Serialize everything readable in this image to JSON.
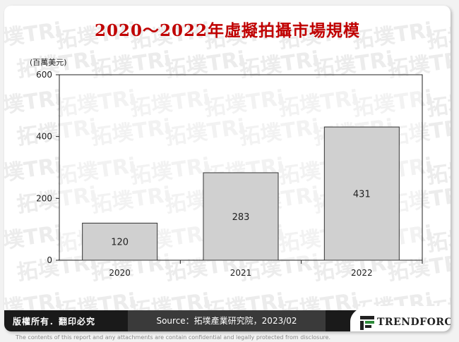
{
  "title": "2020～2022年虛擬拍攝市場規模",
  "footer": {
    "rights": "版權所有．翻印必究",
    "source": "Source：拓墣產業研究院，2023/02",
    "logo_text": "TRENDFORCE"
  },
  "disclaimer": "The contents of this report and any attachments are contain confidential and legally protected from disclosure.",
  "watermark_text": "拓墣TRi",
  "chart_data": {
    "type": "bar",
    "title": "2020～2022年虛擬拍攝市場規模",
    "ylabel": "(百萬美元)",
    "xlabel": "",
    "categories": [
      "2020",
      "2021",
      "2022"
    ],
    "values": [
      120,
      283,
      431
    ],
    "ylim": [
      0,
      600
    ],
    "yticks": [
      0,
      200,
      400,
      600
    ],
    "bar_color": "#d0d0d0",
    "bar_stroke": "#333333",
    "grid": false,
    "data_labels": true
  }
}
